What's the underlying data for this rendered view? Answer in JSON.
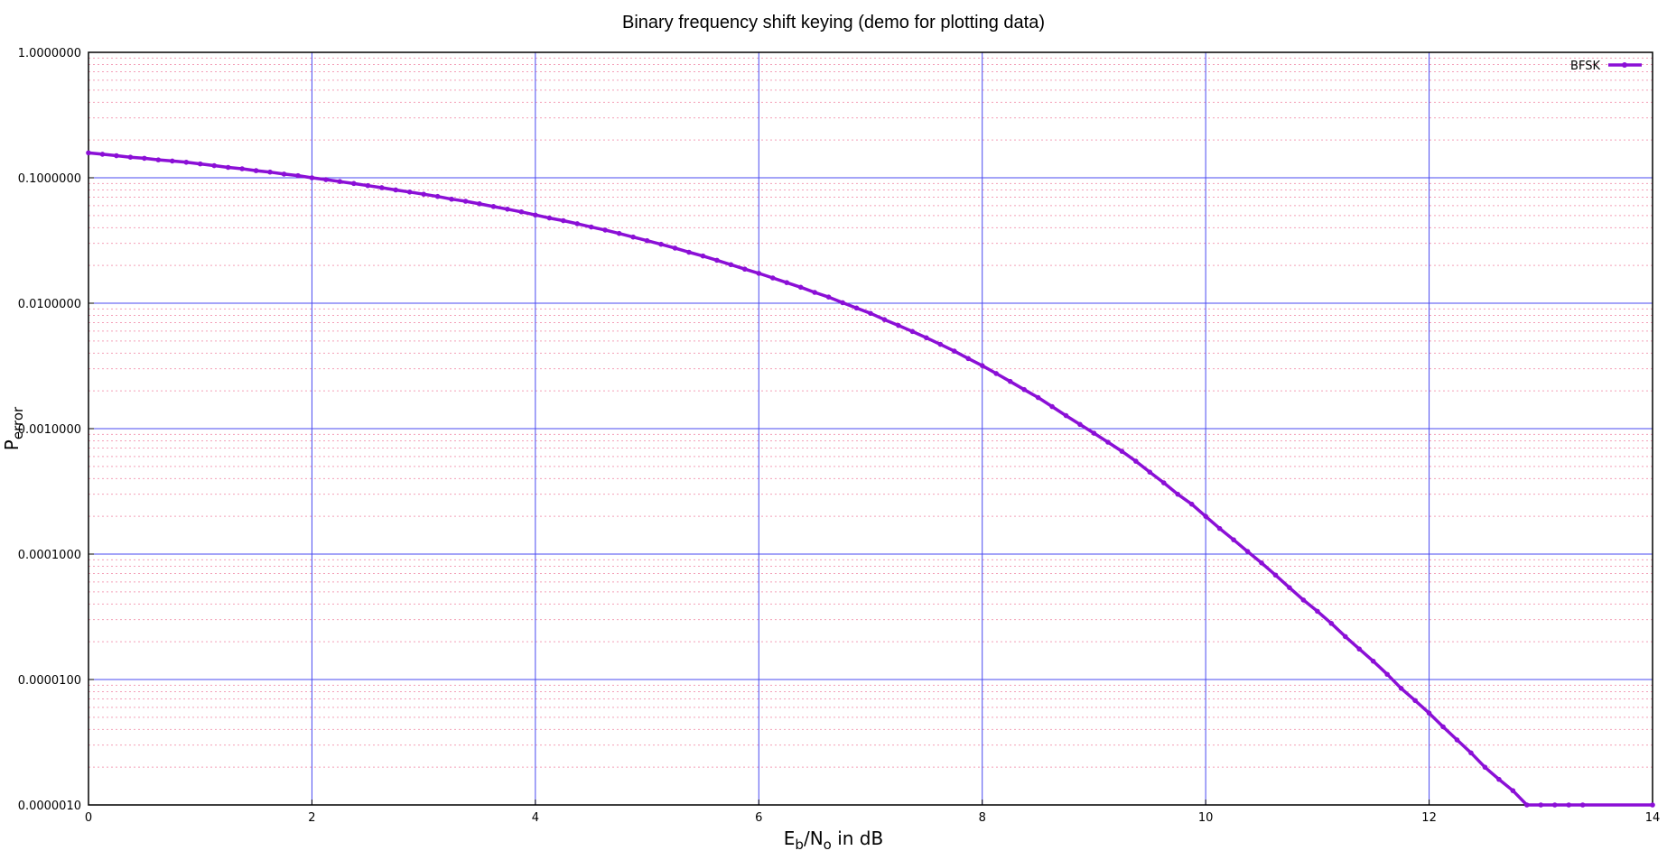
{
  "chart_data": {
    "type": "line",
    "title": "Binary frequency shift keying (demo for plotting data)",
    "xlabel": {
      "main": "E",
      "sub1": "b",
      "mid": "/N",
      "sub2": "o",
      "tail": " in dB"
    },
    "ylabel": {
      "main": "P",
      "sub": "error"
    },
    "xlim": [
      0,
      14
    ],
    "ylim": [
      1e-06,
      1
    ],
    "yscale": "log",
    "xticks": [
      0,
      2,
      4,
      6,
      8,
      10,
      12,
      14
    ],
    "xtick_labels": [
      "0",
      "2",
      "4",
      "6",
      "8",
      "10",
      "12",
      "14"
    ],
    "yticks": [
      1,
      0.1,
      0.01,
      0.001,
      0.0001,
      1e-05,
      1e-06
    ],
    "ytick_labels": [
      "1.0000000",
      "0.1000000",
      "0.0100000",
      "0.0010000",
      "0.0001000",
      "0.0000100",
      "0.0000010"
    ],
    "grid": {
      "major": true,
      "minor_y": true
    },
    "legend": {
      "position": "top-right"
    },
    "colors": {
      "series": "#8b0fd6",
      "major_grid": "#4a4af0",
      "minor_grid": "#f4a0b8"
    },
    "series": [
      {
        "name": "BFSK",
        "x": [
          0,
          0.125,
          0.25,
          0.375,
          0.5,
          0.625,
          0.75,
          0.875,
          1,
          1.125,
          1.25,
          1.375,
          1.5,
          1.625,
          1.75,
          1.875,
          2,
          2.125,
          2.25,
          2.375,
          2.5,
          2.625,
          2.75,
          2.875,
          3,
          3.125,
          3.25,
          3.375,
          3.5,
          3.625,
          3.75,
          3.875,
          4,
          4.125,
          4.25,
          4.375,
          4.5,
          4.625,
          4.75,
          4.875,
          5,
          5.125,
          5.25,
          5.375,
          5.5,
          5.625,
          5.75,
          5.875,
          6,
          6.125,
          6.25,
          6.375,
          6.5,
          6.625,
          6.75,
          6.875,
          7,
          7.125,
          7.25,
          7.375,
          7.5,
          7.625,
          7.75,
          7.875,
          8,
          8.125,
          8.25,
          8.375,
          8.5,
          8.625,
          8.75,
          8.875,
          9,
          9.125,
          9.25,
          9.375,
          9.5,
          9.625,
          9.75,
          9.875,
          10,
          10.125,
          10.25,
          10.375,
          10.5,
          10.625,
          10.75,
          10.875,
          11,
          11.125,
          11.25,
          11.375,
          11.5,
          11.625,
          11.75,
          11.875,
          12,
          12.125,
          12.25,
          12.375,
          12.5,
          12.625,
          12.75,
          12.875,
          13,
          13.125,
          13.25,
          13.375,
          14
        ],
        "y": [
          0.158,
          0.154,
          0.15,
          0.146,
          0.143,
          0.139,
          0.136,
          0.133,
          0.129,
          0.125,
          0.121,
          0.118,
          0.114,
          0.111,
          0.107,
          0.104,
          0.1,
          0.0967,
          0.0933,
          0.09,
          0.0866,
          0.0834,
          0.08,
          0.077,
          0.074,
          0.071,
          0.0675,
          0.065,
          0.062,
          0.059,
          0.0562,
          0.0535,
          0.0505,
          0.0478,
          0.0455,
          0.043,
          0.0405,
          0.0383,
          0.036,
          0.0337,
          0.0315,
          0.0295,
          0.0275,
          0.0255,
          0.0238,
          0.022,
          0.0203,
          0.0187,
          0.0173,
          0.0159,
          0.0146,
          0.0134,
          0.0122,
          0.0112,
          0.0101,
          0.00915,
          0.0083,
          0.0074,
          0.00665,
          0.00595,
          0.0053,
          0.0047,
          0.00415,
          0.00362,
          0.00318,
          0.00275,
          0.00238,
          0.00205,
          0.00177,
          0.0015,
          0.00127,
          0.00108,
          0.00092,
          0.00078,
          0.00066,
          0.00055,
          0.00045,
          0.00037,
          0.0003,
          0.00025,
          0.0002,
          0.00016,
          0.00013,
          0.000105,
          8.5e-05,
          6.8e-05,
          5.4e-05,
          4.3e-05,
          3.5e-05,
          2.8e-05,
          2.2e-05,
          1.75e-05,
          1.4e-05,
          1.1e-05,
          8.5e-06,
          6.8e-06,
          5.4e-06,
          4.2e-06,
          3.3e-06,
          2.6e-06,
          2e-06,
          1.6e-06,
          1.3e-06,
          1e-06,
          1e-06,
          1e-06,
          1e-06,
          1e-06,
          1e-06
        ]
      }
    ]
  }
}
